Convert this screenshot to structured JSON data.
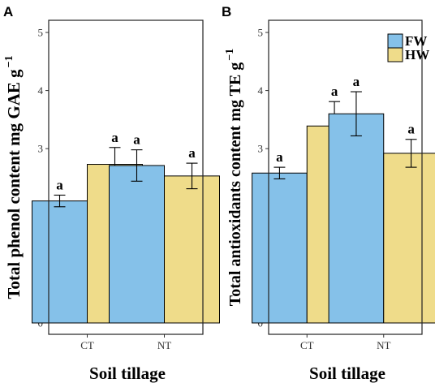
{
  "colors": {
    "FW": "#85C1E9",
    "HW": "#EFDC8A"
  },
  "chart_data": [
    {
      "panel": "A",
      "type": "bar",
      "xlabel": "Soil tillage",
      "ylabel_main": "Total phenol content mg GAE g",
      "ylabel_sup": "−1",
      "categories": [
        "CT",
        "NT"
      ],
      "ylim": [
        0,
        5
      ],
      "yticks": [
        "0",
        "1",
        "2",
        "3",
        "4",
        "5"
      ],
      "grid": false,
      "series": [
        {
          "key": "FW",
          "values": [
            2.1,
            2.71
          ],
          "errors": [
            0.1,
            0.27
          ],
          "labels": [
            "a",
            "a"
          ]
        },
        {
          "key": "HW",
          "values": [
            2.73,
            2.53
          ],
          "errors": [
            0.29,
            0.22
          ],
          "labels": [
            "a",
            "a"
          ]
        }
      ]
    },
    {
      "panel": "B",
      "type": "bar",
      "xlabel": "Soil tillage",
      "ylabel_main": "Total antioxidants content mg TE g",
      "ylabel_sup": "−1",
      "categories": [
        "CT",
        "NT"
      ],
      "ylim": [
        0,
        5
      ],
      "yticks": [
        "0",
        "1",
        "2",
        "3",
        "4",
        "5"
      ],
      "grid": false,
      "legend_position": "top-right",
      "legend": [
        {
          "key": "FW",
          "name": "FW"
        },
        {
          "key": "HW",
          "name": "HW"
        }
      ],
      "series": [
        {
          "key": "FW",
          "values": [
            2.58,
            3.6
          ],
          "errors": [
            0.1,
            0.38
          ],
          "labels": [
            "a",
            "a"
          ]
        },
        {
          "key": "HW",
          "values": [
            3.39,
            2.92
          ],
          "errors": [
            0.42,
            0.24
          ],
          "labels": [
            "a",
            "a"
          ]
        }
      ]
    }
  ]
}
